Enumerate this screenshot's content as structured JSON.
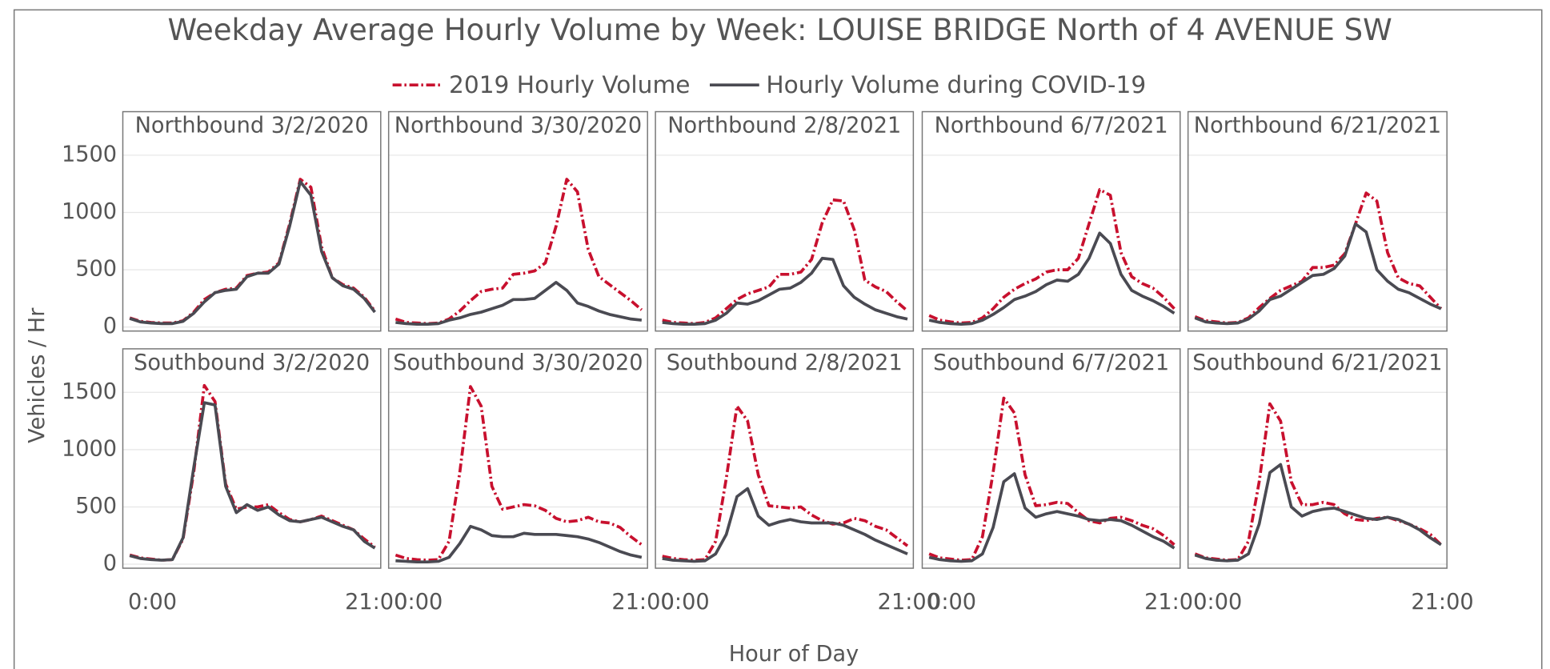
{
  "title": "Weekday Average Hourly Volume by Week: LOUISE BRIDGE North of 4 AVENUE SW",
  "x_label": "Hour of Day",
  "y_label": "Vehicles / Hr",
  "legend": [
    {
      "name": "2019 Hourly Volume",
      "color": "#c8102e",
      "style": "dashdot"
    },
    {
      "name": "Hourly Volume during COVID-19",
      "color": "#4a4a52",
      "style": "solid"
    }
  ],
  "x": [
    0,
    1,
    2,
    3,
    4,
    5,
    6,
    7,
    8,
    9,
    10,
    11,
    12,
    13,
    14,
    15,
    16,
    17,
    18,
    19,
    20,
    21,
    22,
    23
  ],
  "xlim": [
    -0.65,
    23.55
  ],
  "xticks": [
    {
      "value": 0,
      "label": "0:00"
    },
    {
      "value": 21,
      "label": "21:00"
    }
  ],
  "ylim": [
    -35,
    1880
  ],
  "yticks": [
    0,
    500,
    1000,
    1500
  ],
  "grid": true,
  "chart_data": [
    {
      "type": "line",
      "title": "Northbound 3/2/2020",
      "series": [
        {
          "values": [
            80,
            50,
            40,
            35,
            35,
            55,
            130,
            240,
            300,
            330,
            340,
            450,
            470,
            480,
            560,
            900,
            1290,
            1220,
            700,
            430,
            370,
            340,
            260,
            140
          ]
        },
        {
          "values": [
            75,
            45,
            35,
            30,
            30,
            50,
            120,
            220,
            300,
            320,
            330,
            440,
            470,
            470,
            550,
            880,
            1270,
            1150,
            660,
            430,
            360,
            330,
            250,
            130
          ]
        }
      ]
    },
    {
      "type": "line",
      "title": "Northbound 3/30/2020",
      "series": [
        {
          "values": [
            70,
            40,
            35,
            30,
            35,
            70,
            140,
            230,
            310,
            330,
            340,
            460,
            470,
            490,
            560,
            880,
            1290,
            1180,
            680,
            440,
            370,
            300,
            230,
            150
          ]
        },
        {
          "values": [
            40,
            30,
            25,
            25,
            30,
            60,
            80,
            110,
            130,
            160,
            190,
            240,
            240,
            250,
            320,
            390,
            320,
            210,
            180,
            140,
            110,
            90,
            70,
            60
          ]
        }
      ]
    },
    {
      "type": "line",
      "title": "Northbound 2/8/2021",
      "series": [
        {
          "values": [
            60,
            40,
            35,
            30,
            40,
            80,
            160,
            240,
            290,
            320,
            350,
            460,
            460,
            480,
            590,
            910,
            1110,
            1100,
            850,
            410,
            350,
            310,
            220,
            140
          ]
        },
        {
          "values": [
            40,
            30,
            25,
            25,
            30,
            60,
            120,
            210,
            200,
            230,
            280,
            330,
            340,
            390,
            470,
            600,
            590,
            360,
            260,
            200,
            150,
            120,
            90,
            70
          ]
        }
      ]
    },
    {
      "type": "line",
      "title": "Northbound 6/7/2021",
      "series": [
        {
          "values": [
            100,
            60,
            45,
            35,
            40,
            80,
            160,
            260,
            330,
            380,
            420,
            480,
            500,
            500,
            600,
            900,
            1200,
            1150,
            650,
            440,
            380,
            340,
            260,
            160
          ]
        },
        {
          "values": [
            60,
            40,
            30,
            25,
            30,
            60,
            110,
            170,
            240,
            270,
            310,
            370,
            410,
            400,
            460,
            600,
            820,
            730,
            460,
            320,
            270,
            230,
            180,
            120
          ]
        }
      ]
    },
    {
      "type": "line",
      "title": "Northbound 6/21/2021",
      "series": [
        {
          "values": [
            90,
            55,
            45,
            35,
            40,
            80,
            170,
            250,
            320,
            360,
            400,
            520,
            520,
            540,
            640,
            900,
            1170,
            1100,
            650,
            430,
            380,
            360,
            260,
            160
          ]
        },
        {
          "values": [
            80,
            45,
            35,
            30,
            35,
            70,
            140,
            240,
            270,
            330,
            390,
            450,
            460,
            510,
            620,
            900,
            830,
            500,
            400,
            330,
            300,
            250,
            200,
            160
          ]
        }
      ]
    },
    {
      "type": "line",
      "title": "Southbound 3/2/2020",
      "series": [
        {
          "values": [
            80,
            55,
            45,
            35,
            40,
            220,
            800,
            1560,
            1420,
            700,
            480,
            500,
            500,
            520,
            450,
            390,
            370,
            390,
            420,
            380,
            340,
            300,
            220,
            150
          ]
        },
        {
          "values": [
            75,
            50,
            40,
            35,
            40,
            230,
            840,
            1410,
            1390,
            680,
            450,
            520,
            470,
            500,
            430,
            380,
            370,
            390,
            410,
            370,
            330,
            300,
            200,
            140
          ]
        }
      ]
    },
    {
      "type": "line",
      "title": "Southbound 3/30/2020",
      "series": [
        {
          "values": [
            80,
            50,
            40,
            35,
            40,
            200,
            800,
            1550,
            1380,
            680,
            480,
            500,
            520,
            510,
            470,
            400,
            370,
            380,
            410,
            370,
            360,
            320,
            240,
            170
          ]
        },
        {
          "values": [
            30,
            25,
            20,
            20,
            25,
            60,
            180,
            330,
            300,
            250,
            240,
            240,
            270,
            260,
            260,
            260,
            250,
            240,
            220,
            190,
            150,
            110,
            80,
            60
          ]
        }
      ]
    },
    {
      "type": "line",
      "title": "Southbound 2/8/2021",
      "series": [
        {
          "values": [
            70,
            50,
            40,
            35,
            40,
            200,
            750,
            1380,
            1250,
            780,
            510,
            500,
            490,
            500,
            430,
            380,
            350,
            360,
            400,
            380,
            330,
            300,
            230,
            160
          ]
        },
        {
          "values": [
            50,
            35,
            30,
            25,
            30,
            90,
            260,
            590,
            660,
            420,
            340,
            370,
            390,
            370,
            360,
            360,
            360,
            340,
            300,
            260,
            210,
            170,
            130,
            90
          ]
        }
      ]
    },
    {
      "type": "line",
      "title": "Southbound 6/7/2021",
      "series": [
        {
          "values": [
            90,
            55,
            45,
            35,
            40,
            240,
            800,
            1450,
            1320,
            780,
            510,
            520,
            540,
            530,
            450,
            380,
            360,
            400,
            410,
            380,
            340,
            310,
            250,
            170
          ]
        },
        {
          "values": [
            60,
            40,
            30,
            25,
            30,
            90,
            320,
            720,
            790,
            490,
            410,
            440,
            460,
            440,
            420,
            390,
            380,
            390,
            380,
            340,
            290,
            240,
            200,
            140
          ]
        }
      ]
    },
    {
      "type": "line",
      "title": "Southbound 6/21/2021",
      "series": [
        {
          "values": [
            90,
            55,
            45,
            35,
            40,
            200,
            720,
            1400,
            1250,
            720,
            520,
            520,
            540,
            520,
            440,
            390,
            380,
            400,
            410,
            380,
            350,
            310,
            260,
            170
          ]
        },
        {
          "values": [
            80,
            50,
            35,
            30,
            35,
            90,
            350,
            800,
            870,
            500,
            420,
            460,
            480,
            490,
            460,
            430,
            400,
            390,
            410,
            390,
            350,
            300,
            230,
            170
          ]
        }
      ]
    }
  ]
}
